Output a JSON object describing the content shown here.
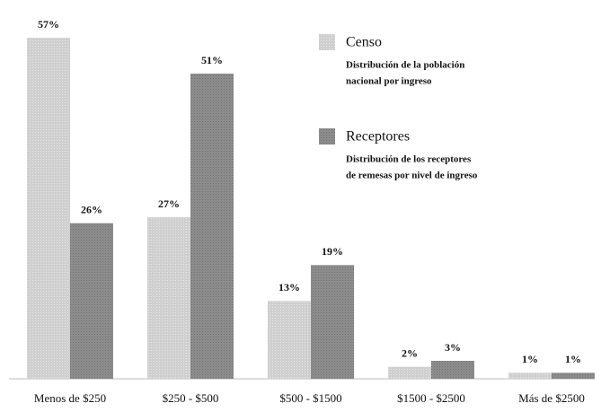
{
  "chart_data": {
    "type": "bar",
    "categories": [
      "Menos de $250",
      "$250 - $500",
      "$500 - $1500",
      "$1500 - $2500",
      "Más de $2500"
    ],
    "series": [
      {
        "name": "Censo",
        "color": "#cfcfcf",
        "description": [
          "Distribución de la población",
          "nacional por ingreso"
        ],
        "values": [
          57,
          27,
          13,
          2,
          1
        ],
        "value_labels": [
          "57%",
          "27%",
          "13%",
          "2%",
          "1%"
        ]
      },
      {
        "name": "Receptores",
        "color": "#8c8c8c",
        "description": [
          "Distribución de los receptores",
          "de remesas por nivel de ingreso"
        ],
        "values": [
          26,
          51,
          19,
          3,
          1
        ],
        "value_labels": [
          "26%",
          "51%",
          "19%",
          "3%",
          "1%"
        ]
      }
    ]
  }
}
